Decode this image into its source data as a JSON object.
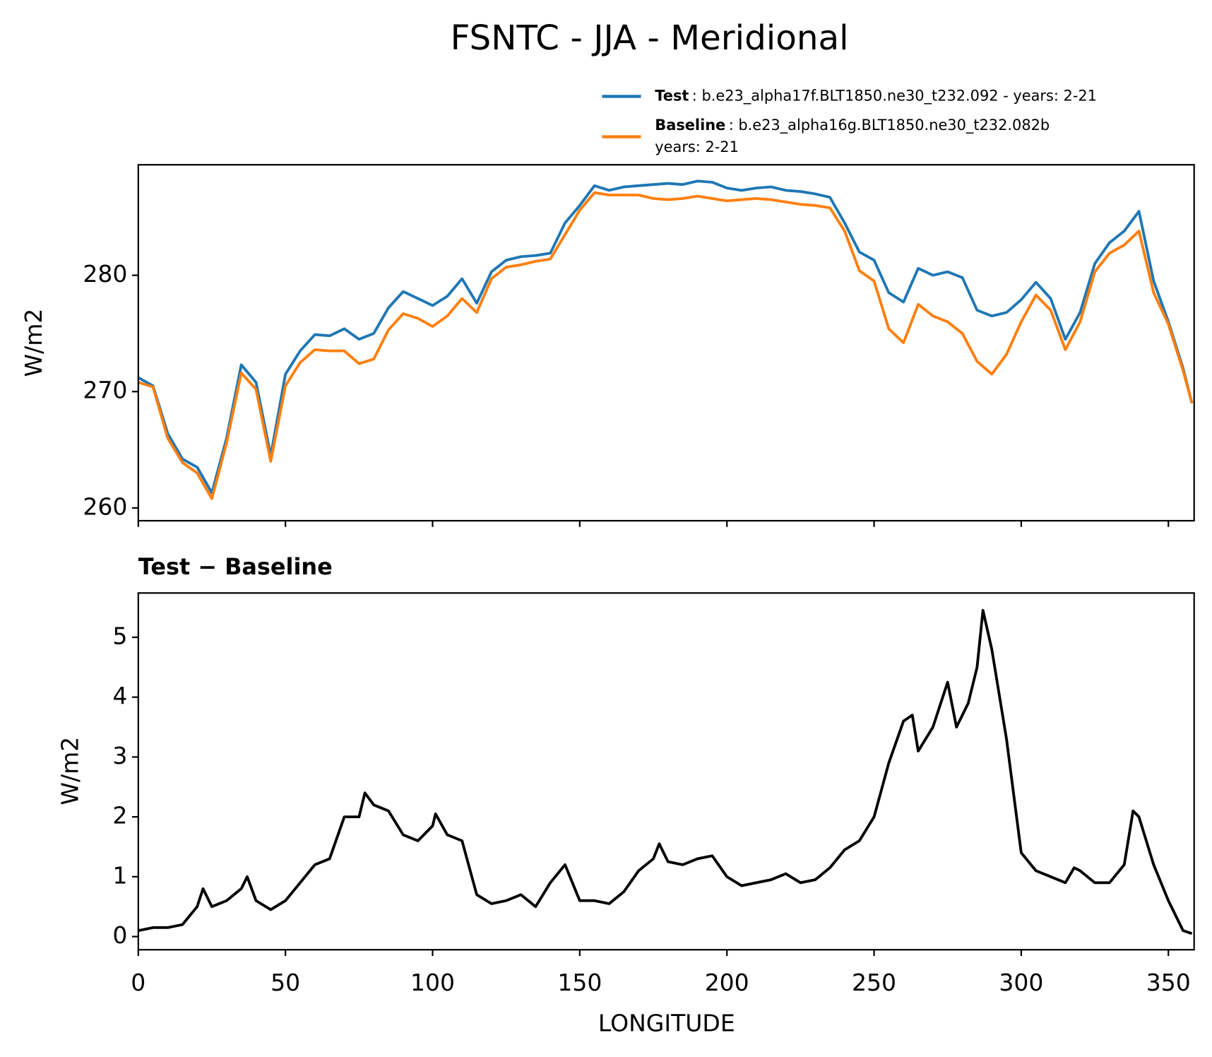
{
  "chart_data": [
    {
      "type": "line",
      "title": "FSNTC - JJA - Meridional",
      "y_label": "W/m2",
      "x": [
        0,
        5,
        10,
        15,
        20,
        25,
        30,
        35,
        40,
        45,
        50,
        55,
        60,
        65,
        70,
        75,
        80,
        85,
        90,
        95,
        100,
        105,
        110,
        115,
        120,
        125,
        130,
        135,
        140,
        145,
        150,
        155,
        160,
        165,
        170,
        175,
        180,
        185,
        190,
        195,
        200,
        205,
        210,
        215,
        220,
        225,
        230,
        235,
        240,
        245,
        250,
        255,
        260,
        265,
        270,
        275,
        280,
        285,
        290,
        295,
        300,
        305,
        310,
        315,
        320,
        325,
        330,
        335,
        340,
        345,
        350,
        355,
        358
      ],
      "series": [
        {
          "name": "Test",
          "label_lines": [
            ": b.e23_alpha17f.BLT1850.ne30_t232.092 - years: 2-21"
          ],
          "color": "#1f77b4",
          "values": [
            271.2,
            270.5,
            266.4,
            264.2,
            263.5,
            261.3,
            266.0,
            272.3,
            270.8,
            264.5,
            271.5,
            273.5,
            274.9,
            274.8,
            275.4,
            274.5,
            275.0,
            277.2,
            278.6,
            278.0,
            277.4,
            278.2,
            279.7,
            277.6,
            280.3,
            281.3,
            281.6,
            281.7,
            281.9,
            284.5,
            286.0,
            287.7,
            287.3,
            287.6,
            287.7,
            287.8,
            287.9,
            287.8,
            288.1,
            288.0,
            287.5,
            287.3,
            287.5,
            287.6,
            287.3,
            287.2,
            287.0,
            286.7,
            284.5,
            282.0,
            281.3,
            278.5,
            277.7,
            280.6,
            280.0,
            280.3,
            279.8,
            277.0,
            276.5,
            276.8,
            277.9,
            279.4,
            278.0,
            274.5,
            276.8,
            281.0,
            282.8,
            283.8,
            285.5,
            279.5,
            276.0,
            272.0,
            269.0
          ]
        },
        {
          "name": "Baseline",
          "label_lines": [
            ": b.e23_alpha16g.BLT1850.ne30_t232.082b",
            "years: 2-21"
          ],
          "color": "#ff7f0e",
          "values": [
            270.8,
            270.4,
            266.0,
            263.9,
            263.0,
            260.8,
            265.6,
            271.6,
            270.2,
            264.0,
            270.5,
            272.5,
            273.6,
            273.5,
            273.5,
            272.4,
            272.8,
            275.3,
            276.7,
            276.3,
            275.6,
            276.5,
            278.0,
            276.8,
            279.7,
            280.7,
            280.9,
            281.2,
            281.4,
            283.5,
            285.6,
            287.1,
            286.9,
            286.9,
            286.9,
            286.6,
            286.5,
            286.6,
            286.8,
            286.6,
            286.4,
            286.5,
            286.6,
            286.5,
            286.3,
            286.1,
            286.0,
            285.8,
            283.8,
            280.4,
            279.5,
            275.4,
            274.2,
            277.5,
            276.5,
            276.0,
            275.0,
            272.6,
            271.5,
            273.2,
            276.0,
            278.3,
            277.0,
            273.6,
            276.0,
            280.3,
            281.9,
            282.6,
            283.8,
            278.5,
            275.8,
            271.8,
            269.0
          ]
        }
      ],
      "xlim": [
        0,
        358.75
      ],
      "ylim": [
        258.9,
        289.5
      ],
      "yticks": [
        260,
        270,
        280
      ]
    },
    {
      "type": "line",
      "title": "Test − Baseline",
      "x_label": "LONGITUDE",
      "y_label": "W/m2",
      "x": [
        0,
        5,
        10,
        15,
        20,
        22,
        25,
        30,
        35,
        37,
        40,
        45,
        50,
        55,
        60,
        65,
        70,
        75,
        77,
        80,
        85,
        90,
        95,
        100,
        101,
        105,
        110,
        115,
        120,
        125,
        130,
        135,
        140,
        145,
        150,
        155,
        160,
        165,
        170,
        175,
        177,
        180,
        185,
        190,
        195,
        200,
        205,
        210,
        215,
        220,
        225,
        230,
        235,
        240,
        245,
        250,
        255,
        260,
        263,
        265,
        270,
        275,
        278,
        282,
        285,
        287,
        290,
        295,
        300,
        305,
        310,
        315,
        318,
        320,
        325,
        330,
        335,
        338,
        340,
        345,
        350,
        355,
        358
      ],
      "color": "#000000",
      "values": [
        0.1,
        0.15,
        0.15,
        0.2,
        0.5,
        0.8,
        0.5,
        0.6,
        0.8,
        1.0,
        0.6,
        0.45,
        0.6,
        0.9,
        1.2,
        1.3,
        2.0,
        2.0,
        2.4,
        2.2,
        2.1,
        1.7,
        1.6,
        1.85,
        2.05,
        1.7,
        1.6,
        0.7,
        0.55,
        0.6,
        0.7,
        0.5,
        0.9,
        1.2,
        0.6,
        0.6,
        0.55,
        0.75,
        1.1,
        1.3,
        1.55,
        1.25,
        1.2,
        1.3,
        1.35,
        1.0,
        0.85,
        0.9,
        0.95,
        1.05,
        0.9,
        0.95,
        1.15,
        1.45,
        1.6,
        2.0,
        2.9,
        3.6,
        3.7,
        3.1,
        3.5,
        4.25,
        3.5,
        3.9,
        4.5,
        5.45,
        4.8,
        3.3,
        1.4,
        1.1,
        1.0,
        0.9,
        1.15,
        1.1,
        0.9,
        0.9,
        1.2,
        2.1,
        2.0,
        1.2,
        0.6,
        0.1,
        0.05
      ],
      "xlim": [
        0,
        358.75
      ],
      "ylim": [
        -0.22,
        5.74
      ],
      "xticks": [
        0,
        50,
        100,
        150,
        200,
        250,
        300,
        350
      ],
      "yticks": [
        0,
        1,
        2,
        3,
        4,
        5
      ]
    }
  ]
}
